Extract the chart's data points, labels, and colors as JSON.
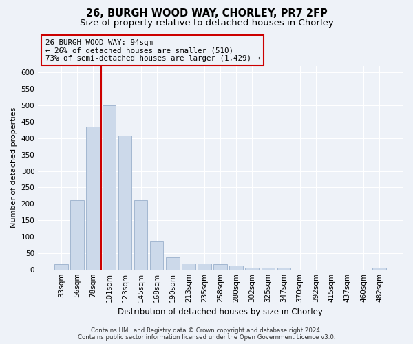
{
  "title_line1": "26, BURGH WOOD WAY, CHORLEY, PR7 2FP",
  "title_line2": "Size of property relative to detached houses in Chorley",
  "xlabel": "Distribution of detached houses by size in Chorley",
  "ylabel": "Number of detached properties",
  "annotation_line1": "26 BURGH WOOD WAY: 94sqm",
  "annotation_line2": "← 26% of detached houses are smaller (510)",
  "annotation_line3": "73% of semi-detached houses are larger (1,429) →",
  "footer_line1": "Contains HM Land Registry data © Crown copyright and database right 2024.",
  "footer_line2": "Contains public sector information licensed under the Open Government Licence v3.0.",
  "bar_labels": [
    "33sqm",
    "56sqm",
    "78sqm",
    "101sqm",
    "123sqm",
    "145sqm",
    "168sqm",
    "190sqm",
    "213sqm",
    "235sqm",
    "258sqm",
    "280sqm",
    "302sqm",
    "325sqm",
    "347sqm",
    "370sqm",
    "392sqm",
    "415sqm",
    "437sqm",
    "460sqm",
    "482sqm"
  ],
  "bar_values": [
    17,
    212,
    435,
    500,
    408,
    210,
    85,
    37,
    18,
    18,
    16,
    12,
    6,
    5,
    5,
    0,
    0,
    0,
    0,
    0,
    5
  ],
  "bar_color": "#ccd9ea",
  "bar_edge_color": "#9ab0cc",
  "vline_color": "#cc0000",
  "vline_x_index": 3,
  "ylim": [
    0,
    620
  ],
  "yticks": [
    0,
    50,
    100,
    150,
    200,
    250,
    300,
    350,
    400,
    450,
    500,
    550,
    600
  ],
  "annotation_box_color": "#cc0000",
  "bg_color": "#eef2f8",
  "grid_color": "#ffffff",
  "title_fontsize": 10.5,
  "subtitle_fontsize": 9.5,
  "axis_label_fontsize": 8.5,
  "tick_fontsize": 7.5,
  "ylabel_fontsize": 8
}
